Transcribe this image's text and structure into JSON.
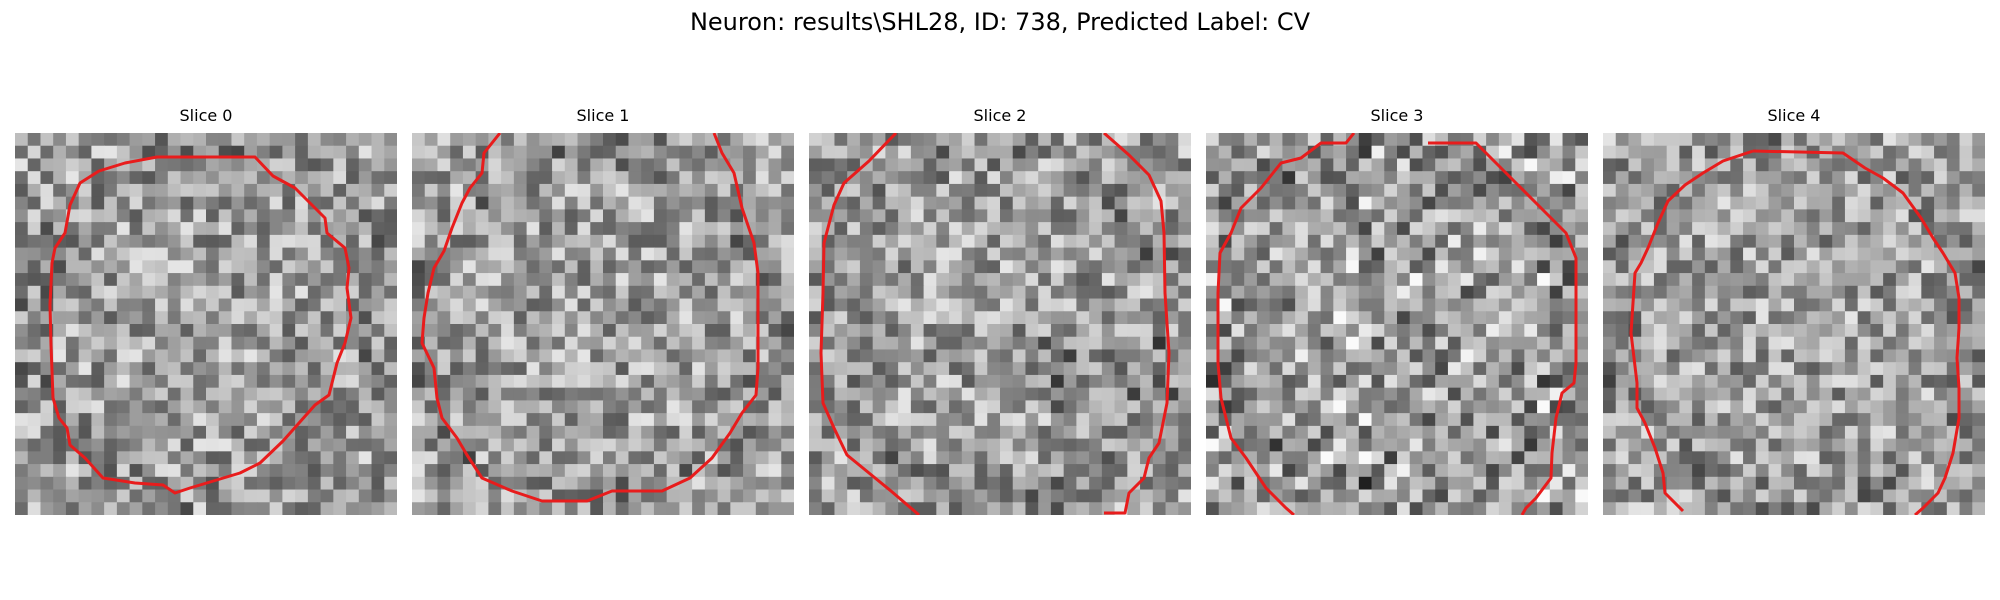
{
  "figure": {
    "title": "Neuron: results\\SHL28, ID: 738, Predicted Label: CV"
  },
  "panels": [
    {
      "title": "Slice 0"
    },
    {
      "title": "Slice 1"
    },
    {
      "title": "Slice 2"
    },
    {
      "title": "Slice 3"
    },
    {
      "title": "Slice 4"
    }
  ],
  "colors": {
    "contour": "#e81c1c",
    "background": "#ffffff"
  },
  "image_style": "grayscale noise patch, 30x30 pixel grid per slice"
}
